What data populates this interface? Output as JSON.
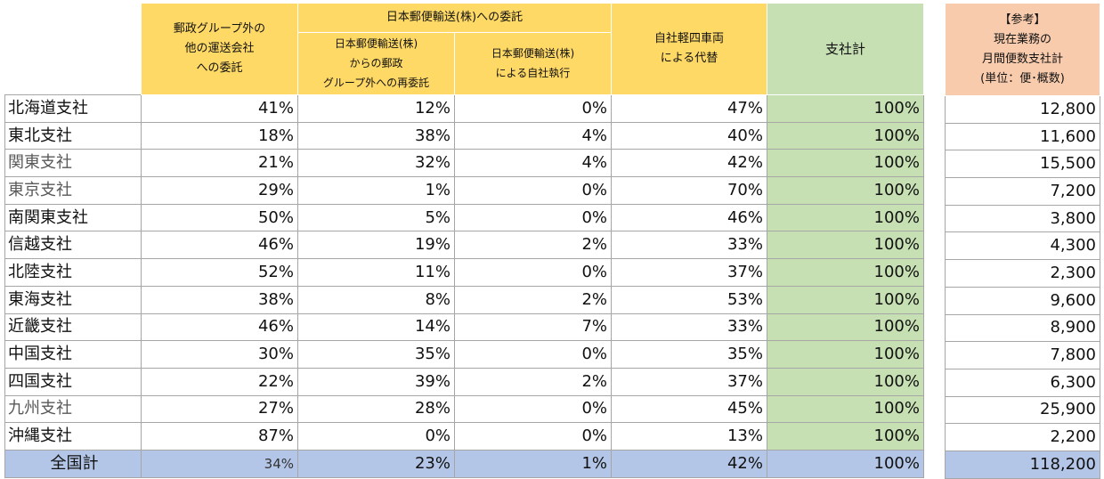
{
  "headers": {
    "col_other": "郵政グループ外の\n他の運送会社\nへの委託",
    "group_jp": "日本郵便輸送(株)への委託",
    "col_resub": "日本郵便輸送(株)\nからの郵政\nグループ外への再委託",
    "col_self": "日本郵便輸送(株)\nによる自社執行",
    "col_own": "自社軽四車両\nによる代替",
    "col_total": "支社計",
    "ref": "【参考】\n現在業務の\n月間便数支社計\n(単位：便･概数)"
  },
  "rows": [
    {
      "branch": "北海道支社",
      "other": "41%",
      "resub": "12%",
      "self": "0%",
      "own": "47%",
      "total": "100%",
      "ref": "12,800"
    },
    {
      "branch": "東北支社",
      "other": "18%",
      "resub": "38%",
      "self": "4%",
      "own": "40%",
      "total": "100%",
      "ref": "11,600"
    },
    {
      "branch": "関東支社",
      "other": "21%",
      "resub": "32%",
      "self": "4%",
      "own": "42%",
      "total": "100%",
      "ref": "15,500"
    },
    {
      "branch": "東京支社",
      "other": "29%",
      "resub": "1%",
      "self": "0%",
      "own": "70%",
      "total": "100%",
      "ref": "7,200"
    },
    {
      "branch": "南関東支社",
      "other": "50%",
      "resub": "5%",
      "self": "0%",
      "own": "46%",
      "total": "100%",
      "ref": "3,800"
    },
    {
      "branch": "信越支社",
      "other": "46%",
      "resub": "19%",
      "self": "2%",
      "own": "33%",
      "total": "100%",
      "ref": "4,300"
    },
    {
      "branch": "北陸支社",
      "other": "52%",
      "resub": "11%",
      "self": "0%",
      "own": "37%",
      "total": "100%",
      "ref": "2,300"
    },
    {
      "branch": "東海支社",
      "other": "38%",
      "resub": "8%",
      "self": "2%",
      "own": "53%",
      "total": "100%",
      "ref": "9,600"
    },
    {
      "branch": "近畿支社",
      "other": "46%",
      "resub": "14%",
      "self": "7%",
      "own": "33%",
      "total": "100%",
      "ref": "8,900"
    },
    {
      "branch": "中国支社",
      "other": "30%",
      "resub": "35%",
      "self": "0%",
      "own": "35%",
      "total": "100%",
      "ref": "7,800"
    },
    {
      "branch": "四国支社",
      "other": "22%",
      "resub": "39%",
      "self": "2%",
      "own": "37%",
      "total": "100%",
      "ref": "6,300"
    },
    {
      "branch": "九州支社",
      "other": "27%",
      "resub": "28%",
      "self": "0%",
      "own": "45%",
      "total": "100%",
      "ref": "25,900"
    },
    {
      "branch": "沖縄支社",
      "other": "87%",
      "resub": "0%",
      "self": "0%",
      "own": "13%",
      "total": "100%",
      "ref": "2,200"
    }
  ],
  "total_row": {
    "branch": "全国計",
    "other": "34%",
    "resub": "23%",
    "self": "1%",
    "own": "42%",
    "total": "100%",
    "ref": "118,200"
  },
  "colors": {
    "header_yellow": "#ffd966",
    "total_green": "#c6e0b4",
    "reference_peach": "#f8cbad",
    "national_blue": "#b4c6e7"
  }
}
